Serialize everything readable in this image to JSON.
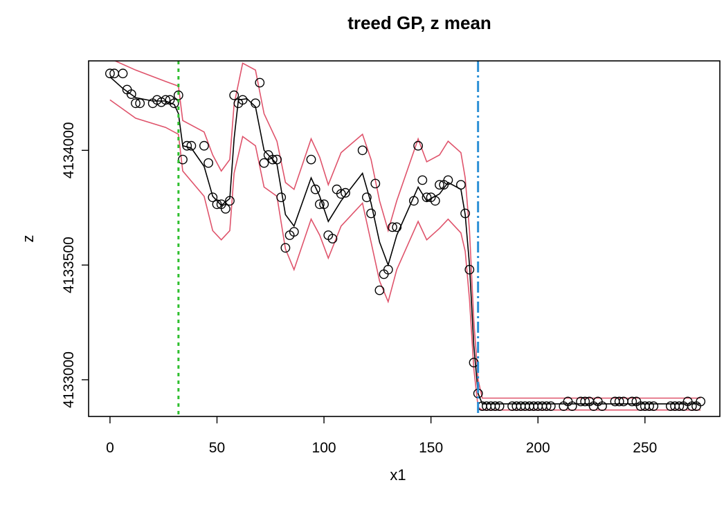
{
  "chart_data": {
    "type": "scatter",
    "title": "treed GP, z mean",
    "xlabel": "x1",
    "ylabel": "z",
    "xlim": [
      -10,
      285
    ],
    "ylim": [
      4132840,
      4134390
    ],
    "x_ticks": [
      0,
      50,
      100,
      150,
      200,
      250
    ],
    "x_tick_labels": [
      "0",
      "50",
      "100",
      "150",
      "200",
      "250"
    ],
    "y_ticks": [
      4133000,
      4133500,
      4134000
    ],
    "y_tick_labels": [
      "4133000",
      "4133500",
      "4134000"
    ],
    "grid": false,
    "legend": "none",
    "colors": {
      "points": "#000000",
      "mean": "#000000",
      "bands": "#df536b",
      "split_1": "#2fbf2f",
      "split_2": "#2b8fd6"
    },
    "vertical_lines": [
      {
        "x": 32,
        "style": "dotted",
        "color": "#2fbf2f"
      },
      {
        "x": 172,
        "style": "dashdot",
        "color": "#2b8fd6"
      }
    ],
    "points": {
      "x": [
        0,
        2,
        6,
        8,
        10,
        12,
        14,
        20,
        22,
        24,
        26,
        28,
        30,
        32,
        34,
        36,
        38,
        44,
        46,
        48,
        50,
        52,
        54,
        56,
        58,
        60,
        62,
        68,
        70,
        72,
        74,
        76,
        78,
        80,
        82,
        84,
        86,
        94,
        96,
        98,
        100,
        102,
        104,
        106,
        108,
        110,
        118,
        120,
        122,
        124,
        126,
        128,
        130,
        132,
        134,
        142,
        144,
        146,
        148,
        150,
        152,
        154,
        156,
        158,
        164,
        166,
        168,
        170,
        172,
        174,
        176,
        178,
        180,
        182,
        188,
        190,
        192,
        194,
        196,
        198,
        200,
        202,
        204,
        206,
        212,
        214,
        216,
        220,
        222,
        224,
        226,
        228,
        230,
        236,
        238,
        240,
        244,
        246,
        248,
        250,
        252,
        254,
        262,
        264,
        266,
        268,
        270,
        272,
        274,
        276
      ],
      "y": [
        4134335,
        4134335,
        4134335,
        4134265,
        4134245,
        4134205,
        4134205,
        4134205,
        4134220,
        4134210,
        4134220,
        4134220,
        4134205,
        4134240,
        4133960,
        4134020,
        4134020,
        4134020,
        4133945,
        4133795,
        4133765,
        4133765,
        4133745,
        4133780,
        4134240,
        4134205,
        4134220,
        4134205,
        4134295,
        4133945,
        4133980,
        4133960,
        4133960,
        4133795,
        4133575,
        4133630,
        4133645,
        4133960,
        4133830,
        4133765,
        4133765,
        4133630,
        4133615,
        4133830,
        4133810,
        4133815,
        4134000,
        4133795,
        4133725,
        4133855,
        4133390,
        4133460,
        4133480,
        4133665,
        4133665,
        4133780,
        4134020,
        4133870,
        4133795,
        4133795,
        4133780,
        4133850,
        4133850,
        4133870,
        4133850,
        4133725,
        4133480,
        4133075,
        4132940,
        4132885,
        4132885,
        4132885,
        4132885,
        4132885,
        4132885,
        4132885,
        4132885,
        4132885,
        4132885,
        4132885,
        4132885,
        4132885,
        4132885,
        4132885,
        4132885,
        4132905,
        4132885,
        4132905,
        4132905,
        4132905,
        4132885,
        4132905,
        4132885,
        4132905,
        4132905,
        4132905,
        4132905,
        4132905,
        4132885,
        4132885,
        4132885,
        4132885,
        4132885,
        4132885,
        4132885,
        4132885,
        4132905,
        4132885,
        4132885,
        4132905
      ]
    },
    "mean": {
      "x": [
        0,
        6,
        12,
        20,
        26,
        30,
        32,
        34,
        38,
        44,
        48,
        52,
        56,
        58,
        60,
        64,
        68,
        72,
        78,
        82,
        86,
        94,
        98,
        102,
        108,
        118,
        122,
        126,
        130,
        134,
        144,
        148,
        154,
        158,
        164,
        166,
        168,
        170,
        172,
        174,
        276
      ],
      "y": [
        4134320,
        4134270,
        4134230,
        4134215,
        4134215,
        4134200,
        4134160,
        4134020,
        4134010,
        4133930,
        4133800,
        4133760,
        4133790,
        4134050,
        4134220,
        4134225,
        4134190,
        4134000,
        4133940,
        4133720,
        4133670,
        4133880,
        4133800,
        4133690,
        4133780,
        4133900,
        4133770,
        4133600,
        4133500,
        4133630,
        4133840,
        4133780,
        4133810,
        4133860,
        4133830,
        4133720,
        4133500,
        4133150,
        4132940,
        4132895,
        4132895
      ]
    },
    "upper": {
      "x": [
        0,
        12,
        26,
        32,
        34,
        44,
        48,
        52,
        56,
        58,
        62,
        68,
        72,
        78,
        82,
        86,
        94,
        98,
        102,
        108,
        118,
        122,
        126,
        130,
        134,
        144,
        148,
        154,
        158,
        164,
        166,
        168,
        170,
        172,
        174,
        276
      ],
      "y": [
        4134400,
        4134350,
        4134300,
        4134280,
        4134130,
        4134080,
        4133980,
        4133910,
        4133960,
        4134200,
        4134380,
        4134350,
        4134160,
        4134040,
        4133860,
        4133830,
        4134050,
        4133970,
        4133850,
        4133990,
        4134070,
        4133960,
        4133780,
        4133650,
        4133780,
        4134050,
        4133950,
        4133980,
        4134040,
        4133990,
        4133880,
        4133650,
        4133260,
        4133000,
        4132920,
        4132920
      ]
    },
    "lower": {
      "x": [
        0,
        12,
        26,
        32,
        34,
        44,
        48,
        52,
        56,
        58,
        62,
        68,
        72,
        78,
        82,
        86,
        94,
        98,
        102,
        108,
        118,
        122,
        126,
        130,
        134,
        144,
        148,
        154,
        158,
        164,
        166,
        168,
        170,
        172,
        174,
        276
      ],
      "y": [
        4134220,
        4134140,
        4134100,
        4134070,
        4133910,
        4133800,
        4133650,
        4133610,
        4133650,
        4133900,
        4134060,
        4134020,
        4133840,
        4133800,
        4133570,
        4133480,
        4133700,
        4133630,
        4133530,
        4133670,
        4133770,
        4133600,
        4133430,
        4133340,
        4133480,
        4133690,
        4133610,
        4133660,
        4133700,
        4133640,
        4133560,
        4133350,
        4133050,
        4132880,
        4132868,
        4132868
      ]
    }
  }
}
